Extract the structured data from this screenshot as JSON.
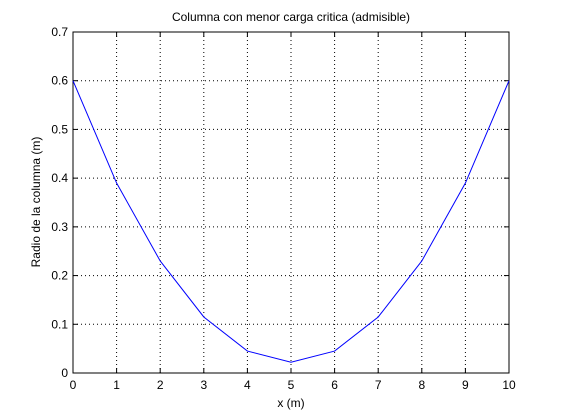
{
  "chart_data": {
    "type": "line",
    "title": "Columna con menor carga critica (admisible)",
    "xlabel": "x (m)",
    "ylabel": "Radio de la columna (m)",
    "x": [
      0,
      1,
      2,
      3,
      4,
      5,
      6,
      7,
      8,
      9,
      10
    ],
    "series": [
      {
        "color": "#0000ff",
        "values": [
          0.6,
          0.39,
          0.23,
          0.115,
          0.045,
          0.022,
          0.045,
          0.115,
          0.23,
          0.39,
          0.6
        ]
      }
    ],
    "xlim": [
      0,
      10
    ],
    "xticks": [
      0,
      1,
      2,
      3,
      4,
      5,
      6,
      7,
      8,
      9,
      10
    ],
    "ylim": [
      0,
      0.7
    ],
    "yticks": [
      0,
      0.1,
      0.2,
      0.3,
      0.4,
      0.5,
      0.6,
      0.7
    ],
    "grid": true
  }
}
